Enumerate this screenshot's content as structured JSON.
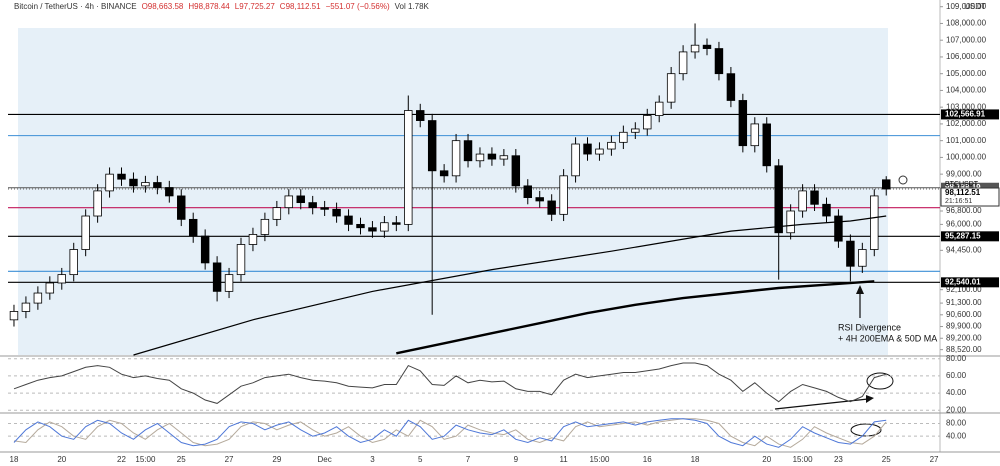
{
  "chart_data": {
    "type": "candlestick",
    "title": "Bitcoin / TetherUS · 4h · BINANCE",
    "ohlc_labels": [
      "O98,663.58",
      "H98,878.44",
      "L97,725.27",
      "C98,112.51",
      "−551.07 (−0.56%)",
      "Vol 1.78K"
    ],
    "currency": "USDT",
    "categories": [
      "18",
      null,
      null,
      null,
      "20",
      null,
      null,
      null,
      null,
      "22",
      null,
      "15:00",
      null,
      null,
      "25",
      null,
      null,
      null,
      "27",
      null,
      null,
      null,
      "29",
      null,
      null,
      null,
      "Dec",
      null,
      null,
      null,
      "3",
      null,
      null,
      null,
      "5",
      null,
      null,
      null,
      "7",
      null,
      null,
      null,
      "9",
      null,
      null,
      null,
      "11",
      null,
      null,
      "15:00",
      null,
      null,
      null,
      "16",
      null,
      null,
      null,
      "18",
      null,
      null,
      null,
      null,
      null,
      "20",
      null,
      null,
      "15:00",
      null,
      null,
      "23",
      null,
      null,
      null,
      "25",
      null,
      null,
      null,
      "27"
    ],
    "open": [
      90300,
      90800,
      91300,
      91900,
      92500,
      93000,
      94500,
      96500,
      98000,
      99000,
      98700,
      98300,
      98500,
      98200,
      97700,
      96300,
      95300,
      93700,
      92000,
      93000,
      94800,
      95400,
      96300,
      97000,
      97700,
      97300,
      97000,
      96900,
      96500,
      96000,
      95800,
      95600,
      96100,
      96000,
      102800,
      102200,
      99200,
      98900,
      101000,
      99800,
      100200,
      99900,
      100100,
      98300,
      97600,
      97400,
      96600,
      98900,
      100800,
      100200,
      100500,
      100900,
      101500,
      101700,
      102500,
      103300,
      105000,
      106300,
      106700,
      106500,
      105000,
      103400,
      100700,
      102000,
      99500,
      95500,
      96800,
      98000,
      97200,
      96500,
      95000,
      93500,
      94500,
      98663.58,
      null,
      null,
      null,
      null
    ],
    "high": [
      91200,
      91700,
      92300,
      92900,
      93400,
      94900,
      96900,
      98400,
      99400,
      99400,
      99100,
      98900,
      98900,
      98600,
      98100,
      96700,
      95700,
      94100,
      93400,
      95200,
      95800,
      96700,
      97400,
      98100,
      98100,
      97700,
      97400,
      97300,
      96900,
      96400,
      96200,
      96500,
      96500,
      103700,
      103200,
      102600,
      99600,
      101400,
      101400,
      100600,
      100600,
      100500,
      100500,
      98700,
      98000,
      97800,
      99300,
      101200,
      101200,
      100900,
      101300,
      101900,
      102100,
      102900,
      103700,
      105400,
      106700,
      108000,
      107100,
      106900,
      105400,
      103800,
      102400,
      102400,
      99900,
      97200,
      98400,
      98400,
      97600,
      96900,
      95400,
      94900,
      98100,
      98878.44,
      null,
      null,
      null,
      null
    ],
    "low": [
      89900,
      90400,
      90900,
      91500,
      92100,
      92600,
      94100,
      96100,
      97600,
      98300,
      97900,
      97900,
      97800,
      97300,
      95900,
      94900,
      93300,
      91400,
      91600,
      92600,
      94400,
      95000,
      95900,
      96600,
      96900,
      96600,
      96500,
      96100,
      95600,
      95400,
      95200,
      95200,
      95600,
      95600,
      101800,
      90600,
      98500,
      98500,
      99400,
      99400,
      99500,
      99500,
      97900,
      97200,
      97000,
      96200,
      96200,
      98500,
      99800,
      99800,
      100100,
      100500,
      101100,
      101300,
      102100,
      102900,
      104600,
      105900,
      106100,
      104600,
      103000,
      100300,
      100300,
      99100,
      92700,
      95100,
      96400,
      96800,
      96100,
      94600,
      92600,
      93100,
      94100,
      97725.27,
      null,
      null,
      null,
      null
    ],
    "close": [
      90800,
      91300,
      91900,
      92500,
      93000,
      94500,
      96500,
      98000,
      99000,
      98700,
      98300,
      98500,
      98200,
      97700,
      96300,
      95300,
      93700,
      92000,
      93000,
      94800,
      95400,
      96300,
      97000,
      97700,
      97300,
      97000,
      96900,
      96500,
      96000,
      95800,
      95600,
      96100,
      96000,
      102800,
      102200,
      99200,
      98900,
      101000,
      99800,
      100200,
      99900,
      100100,
      98300,
      97600,
      97400,
      96600,
      98900,
      100800,
      100200,
      100500,
      100900,
      101500,
      101700,
      102500,
      103300,
      105000,
      106300,
      106700,
      106500,
      105000,
      103400,
      100700,
      102000,
      99500,
      95500,
      96800,
      98000,
      97200,
      96500,
      95000,
      93500,
      94500,
      97700,
      98112.51,
      null,
      null,
      null,
      null
    ],
    "up_color": "#ffffff",
    "down_color": "#000000",
    "ylim": [
      88200,
      109400
    ],
    "yticks": [
      {
        "value": 109000,
        "label": "109,000.00"
      },
      {
        "value": 108000,
        "label": "108,000.00"
      },
      {
        "value": 107000,
        "label": "107,000.00"
      },
      {
        "value": 106000,
        "label": "106,000.00"
      },
      {
        "value": 105000,
        "label": "105,000.00"
      },
      {
        "value": 104000,
        "label": "104,000.00"
      },
      {
        "value": 103000,
        "label": "103,000.00"
      },
      {
        "value": 102000,
        "label": "102,000.00"
      },
      {
        "value": 101000,
        "label": "101,000.00"
      },
      {
        "value": 100000,
        "label": "100,000.00"
      },
      {
        "value": 99000,
        "label": "99,000.00"
      },
      {
        "value": 96800,
        "label": "96,800.00"
      },
      {
        "value": 96000,
        "label": "96,000.00"
      },
      {
        "value": 94450,
        "label": "94,450.00"
      },
      {
        "value": 92100,
        "label": "92,100.00"
      },
      {
        "value": 91300,
        "label": "91,300.00"
      },
      {
        "value": 90600,
        "label": "90,600.00"
      },
      {
        "value": 89900,
        "label": "89,900.00"
      },
      {
        "value": 89200,
        "label": "89,200.00"
      },
      {
        "value": 88520,
        "label": "88,520.00"
      }
    ],
    "series": [
      {
        "color": "#000000",
        "x": [
          32,
          36,
          40,
          44,
          48,
          52,
          56,
          60,
          64,
          68,
          72
        ],
        "values": [
          88300,
          88900,
          89500,
          90100,
          90700,
          91200,
          91600,
          91900,
          92200,
          92400,
          92600
        ]
      },
      {
        "color": "#000000",
        "x": [
          10,
          20,
          30,
          40,
          50,
          60,
          66,
          70,
          73
        ],
        "values": [
          88200,
          90300,
          92000,
          93300,
          94400,
          95600,
          96000,
          96200,
          96500
        ]
      }
    ],
    "levels": [
      {
        "value": 102566.91,
        "label": "102,566.91",
        "color": "#000000"
      },
      {
        "value": 101300,
        "color": "#3d8fd6"
      },
      {
        "value": 98188.19,
        "label": "98,188.19",
        "color": "#555555"
      },
      {
        "value": 97000,
        "color": "#c2185b"
      },
      {
        "value": 95287.15,
        "label": "95,287.15",
        "color": "#000000"
      },
      {
        "value": 93200,
        "color": "#3d8fd6"
      },
      {
        "value": 92540.01,
        "label": "92,540.01",
        "color": "#000000"
      }
    ],
    "last_price": {
      "value": 98112.51,
      "label": "98,112.51",
      "symbol": "BTCUSDT",
      "countdown": "21:16:51"
    },
    "annotation": [
      "RSI Divergence",
      "+ 4H 200EMA & 50D MA"
    ],
    "rsi": {
      "color": "#444444",
      "ylim": [
        18,
        82
      ],
      "yticks": [
        {
          "value": 80,
          "label": "80.00"
        },
        {
          "value": 60,
          "label": "60.00"
        },
        {
          "value": 40,
          "label": "40.00"
        },
        {
          "value": 20,
          "label": "20.00"
        }
      ],
      "values": [
        45,
        50,
        55,
        58,
        60,
        65,
        70,
        72,
        70,
        62,
        58,
        60,
        57,
        55,
        45,
        40,
        32,
        28,
        38,
        48,
        52,
        58,
        60,
        62,
        58,
        55,
        54,
        52,
        48,
        47,
        46,
        50,
        50,
        72,
        66,
        50,
        49,
        60,
        52,
        55,
        53,
        54,
        45,
        42,
        42,
        38,
        55,
        62,
        58,
        60,
        62,
        64,
        64,
        66,
        68,
        72,
        75,
        75,
        72,
        62,
        55,
        42,
        52,
        40,
        30,
        42,
        50,
        46,
        42,
        35,
        30,
        36,
        58,
        62,
        null,
        null,
        null,
        null
      ]
    },
    "stoch": {
      "ylim": [
        -10,
        110
      ],
      "yticks": [
        {
          "value": 80,
          "label": "80.00"
        },
        {
          "value": 40,
          "label": "40.00"
        }
      ],
      "k": {
        "color": "#4f78d8",
        "values": [
          20,
          60,
          85,
          70,
          40,
          30,
          70,
          90,
          80,
          50,
          30,
          60,
          80,
          50,
          20,
          10,
          15,
          30,
          70,
          85,
          80,
          60,
          75,
          85,
          60,
          40,
          50,
          70,
          40,
          20,
          30,
          60,
          40,
          90,
          70,
          30,
          40,
          75,
          60,
          50,
          45,
          60,
          30,
          20,
          35,
          25,
          70,
          85,
          70,
          75,
          80,
          85,
          75,
          85,
          90,
          95,
          95,
          90,
          80,
          40,
          20,
          10,
          40,
          15,
          5,
          30,
          70,
          50,
          35,
          20,
          15,
          40,
          85,
          90,
          null,
          null,
          null,
          null
        ]
      },
      "d": {
        "color": "#b5aa9c",
        "values": [
          25,
          20,
          60,
          85,
          70,
          40,
          30,
          70,
          90,
          80,
          50,
          30,
          60,
          80,
          50,
          20,
          10,
          15,
          30,
          70,
          85,
          80,
          60,
          75,
          85,
          60,
          40,
          50,
          70,
          40,
          20,
          30,
          60,
          40,
          90,
          70,
          30,
          40,
          75,
          60,
          50,
          45,
          60,
          30,
          20,
          35,
          25,
          70,
          85,
          70,
          75,
          80,
          85,
          75,
          85,
          90,
          95,
          95,
          90,
          80,
          40,
          20,
          10,
          40,
          15,
          5,
          30,
          70,
          50,
          35,
          20,
          15,
          40,
          85,
          null,
          null,
          null,
          null
        ]
      }
    }
  }
}
